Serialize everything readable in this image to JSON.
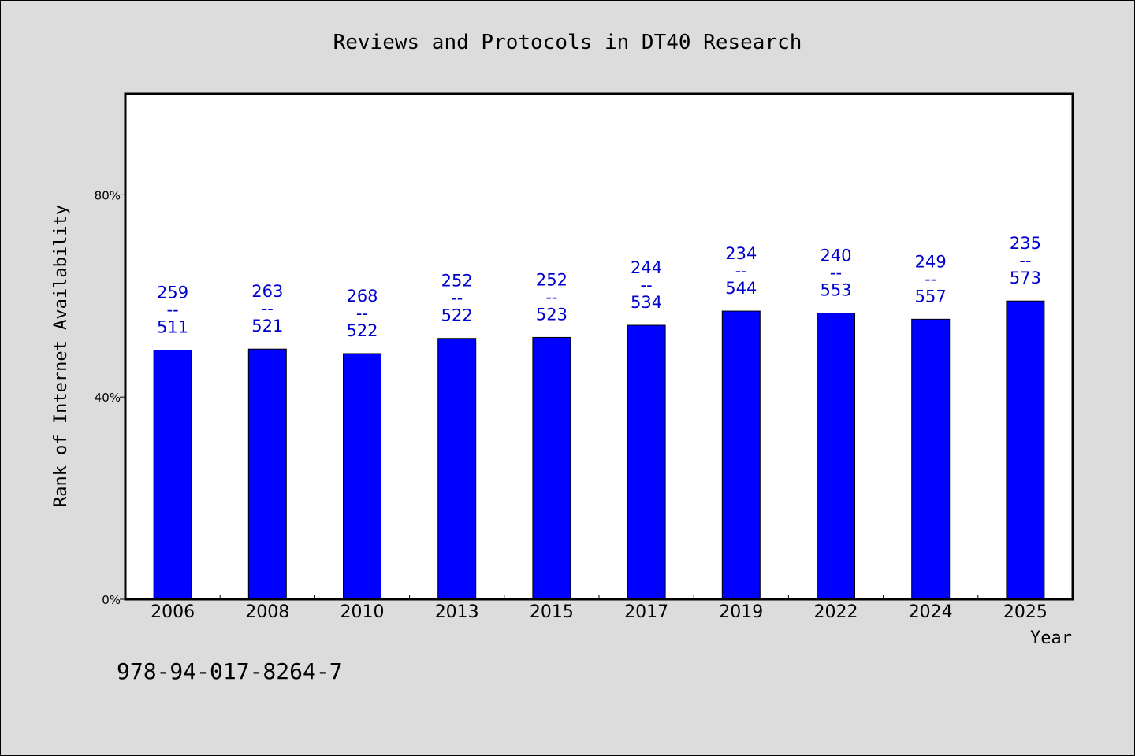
{
  "chart_data": {
    "type": "bar",
    "title": "Reviews and Protocols in DT40 Research",
    "xlabel": "Year",
    "ylabel": "Rank of Internet Availability",
    "categories": [
      "2006",
      "2008",
      "2010",
      "2013",
      "2015",
      "2017",
      "2019",
      "2022",
      "2024",
      "2025"
    ],
    "series": [
      {
        "values": [
          49.3,
          49.5,
          48.6,
          51.6,
          51.8,
          54.2,
          57.0,
          56.6,
          55.4,
          59.0
        ],
        "labels_top": [
          "259",
          "263",
          "268",
          "252",
          "252",
          "244",
          "234",
          "240",
          "249",
          "235"
        ],
        "labels_bottom": [
          "511",
          "521",
          "522",
          "522",
          "523",
          "534",
          "544",
          "553",
          "557",
          "573"
        ]
      }
    ],
    "label_separator": "--",
    "ylim": [
      0,
      100
    ],
    "yticks": [
      0,
      40,
      80
    ],
    "ytick_labels": [
      "0%",
      "40%",
      "80%"
    ],
    "grid": false,
    "bar_color": "#0000ff",
    "label_color": "#0000cc"
  },
  "footer_code": "978-94-017-8264-7"
}
